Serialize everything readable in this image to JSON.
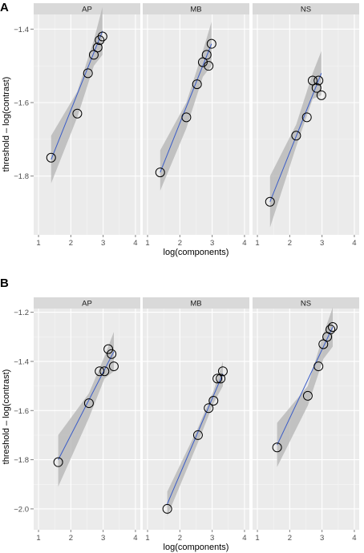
{
  "chart_data": [
    {
      "type": "scatter",
      "panel_label": "A",
      "xlabel": "log(components)",
      "ylabel": "threshold – log(contrast)",
      "xlim": [
        0.85,
        4.15
      ],
      "ylim": [
        -1.96,
        -1.36
      ],
      "xticks": [
        1,
        2,
        3,
        4
      ],
      "yticks": [
        -1.4,
        -1.6,
        -1.8
      ],
      "ytick_labels": [
        "−1.4",
        "−1.6",
        "−1.8"
      ],
      "xtick_labels": [
        "1",
        "2",
        "3",
        "4"
      ],
      "grid": true,
      "facets": [
        {
          "name": "AP",
          "points": [
            [
              1.39,
              -1.75
            ],
            [
              2.2,
              -1.63
            ],
            [
              2.53,
              -1.52
            ],
            [
              2.71,
              -1.47
            ],
            [
              2.83,
              -1.45
            ],
            [
              2.89,
              -1.43
            ],
            [
              2.98,
              -1.42
            ]
          ],
          "fit": {
            "x": [
              1.39,
              2.98
            ],
            "y": [
              -1.755,
              -1.405
            ]
          },
          "ci": {
            "x": [
              1.39,
              2.2,
              2.71,
              2.98
            ],
            "lower": [
              -1.82,
              -1.64,
              -1.5,
              -1.47
            ],
            "upper": [
              -1.69,
              -1.57,
              -1.43,
              -1.34
            ]
          }
        },
        {
          "name": "MB",
          "points": [
            [
              1.39,
              -1.79
            ],
            [
              2.2,
              -1.64
            ],
            [
              2.53,
              -1.55
            ],
            [
              2.71,
              -1.49
            ],
            [
              2.83,
              -1.47
            ],
            [
              2.89,
              -1.5
            ],
            [
              2.98,
              -1.44
            ]
          ],
          "fit": {
            "x": [
              1.39,
              2.98
            ],
            "y": [
              -1.79,
              -1.44
            ]
          },
          "ci": {
            "x": [
              1.39,
              2.2,
              2.71,
              2.98
            ],
            "lower": [
              -1.84,
              -1.67,
              -1.53,
              -1.5
            ],
            "upper": [
              -1.73,
              -1.6,
              -1.46,
              -1.38
            ]
          }
        },
        {
          "name": "NS",
          "points": [
            [
              1.39,
              -1.87
            ],
            [
              2.2,
              -1.69
            ],
            [
              2.53,
              -1.64
            ],
            [
              2.71,
              -1.54
            ],
            [
              2.83,
              -1.56
            ],
            [
              2.89,
              -1.54
            ],
            [
              2.98,
              -1.58
            ]
          ],
          "fit": {
            "x": [
              1.39,
              2.98
            ],
            "y": [
              -1.87,
              -1.52
            ]
          },
          "ci": {
            "x": [
              1.39,
              2.2,
              2.71,
              2.98
            ],
            "lower": [
              -1.94,
              -1.72,
              -1.59,
              -1.58
            ],
            "upper": [
              -1.8,
              -1.66,
              -1.52,
              -1.46
            ]
          }
        }
      ]
    },
    {
      "type": "scatter",
      "panel_label": "B",
      "xlabel": "log(components)",
      "ylabel": "threshold – log(contrast)",
      "xlim": [
        0.85,
        4.15
      ],
      "ylim": [
        -2.085,
        -1.185
      ],
      "xticks": [
        1,
        2,
        3,
        4
      ],
      "yticks": [
        -1.2,
        -1.4,
        -1.6,
        -1.8,
        -2.0
      ],
      "ytick_labels": [
        "−1.2",
        "−1.4",
        "−1.6",
        "−1.8",
        "−2.0"
      ],
      "xtick_labels": [
        "1",
        "2",
        "3",
        "4"
      ],
      "grid": true,
      "facets": [
        {
          "name": "AP",
          "points": [
            [
              1.61,
              -1.81
            ],
            [
              2.56,
              -1.57
            ],
            [
              2.89,
              -1.44
            ],
            [
              3.04,
              -1.44
            ],
            [
              3.16,
              -1.35
            ],
            [
              3.26,
              -1.37
            ],
            [
              3.33,
              -1.42
            ]
          ],
          "fit": {
            "x": [
              1.61,
              3.33
            ],
            "y": [
              -1.8,
              -1.36
            ]
          },
          "ci": {
            "x": [
              1.61,
              2.56,
              3.04,
              3.33
            ],
            "lower": [
              -1.91,
              -1.63,
              -1.47,
              -1.44
            ],
            "upper": [
              -1.7,
              -1.53,
              -1.38,
              -1.28
            ]
          }
        },
        {
          "name": "MB",
          "points": [
            [
              1.61,
              -2.0
            ],
            [
              2.56,
              -1.7
            ],
            [
              2.89,
              -1.59
            ],
            [
              3.04,
              -1.56
            ],
            [
              3.16,
              -1.47
            ],
            [
              3.26,
              -1.47
            ],
            [
              3.33,
              -1.44
            ]
          ],
          "fit": {
            "x": [
              1.61,
              3.33
            ],
            "y": [
              -1.98,
              -1.45
            ]
          },
          "ci": {
            "x": [
              1.61,
              2.56,
              3.04,
              3.33
            ],
            "lower": [
              -2.03,
              -1.73,
              -1.57,
              -1.5
            ],
            "upper": [
              -1.93,
              -1.67,
              -1.52,
              -1.4
            ]
          }
        },
        {
          "name": "NS",
          "points": [
            [
              1.61,
              -1.75
            ],
            [
              2.56,
              -1.54
            ],
            [
              2.89,
              -1.42
            ],
            [
              3.04,
              -1.33
            ],
            [
              3.16,
              -1.3
            ],
            [
              3.26,
              -1.27
            ],
            [
              3.33,
              -1.26
            ]
          ],
          "fit": {
            "x": [
              1.61,
              3.33
            ],
            "y": [
              -1.74,
              -1.26
            ]
          },
          "ci": {
            "x": [
              1.61,
              2.56,
              3.04,
              3.33
            ],
            "lower": [
              -1.83,
              -1.58,
              -1.39,
              -1.34
            ],
            "upper": [
              -1.65,
              -1.5,
              -1.29,
              -1.18
            ]
          }
        }
      ]
    }
  ],
  "style": {
    "panel_bg": "#ebebeb",
    "strip_bg": "#d9d9d9",
    "grid_major": "#ffffff",
    "grid_minor": "#f5f5f5",
    "fit_color": "#3a5cc7",
    "ci_color": "#b3b3b3",
    "point_stroke": "#000000",
    "text_color": "#4d4d4d"
  }
}
